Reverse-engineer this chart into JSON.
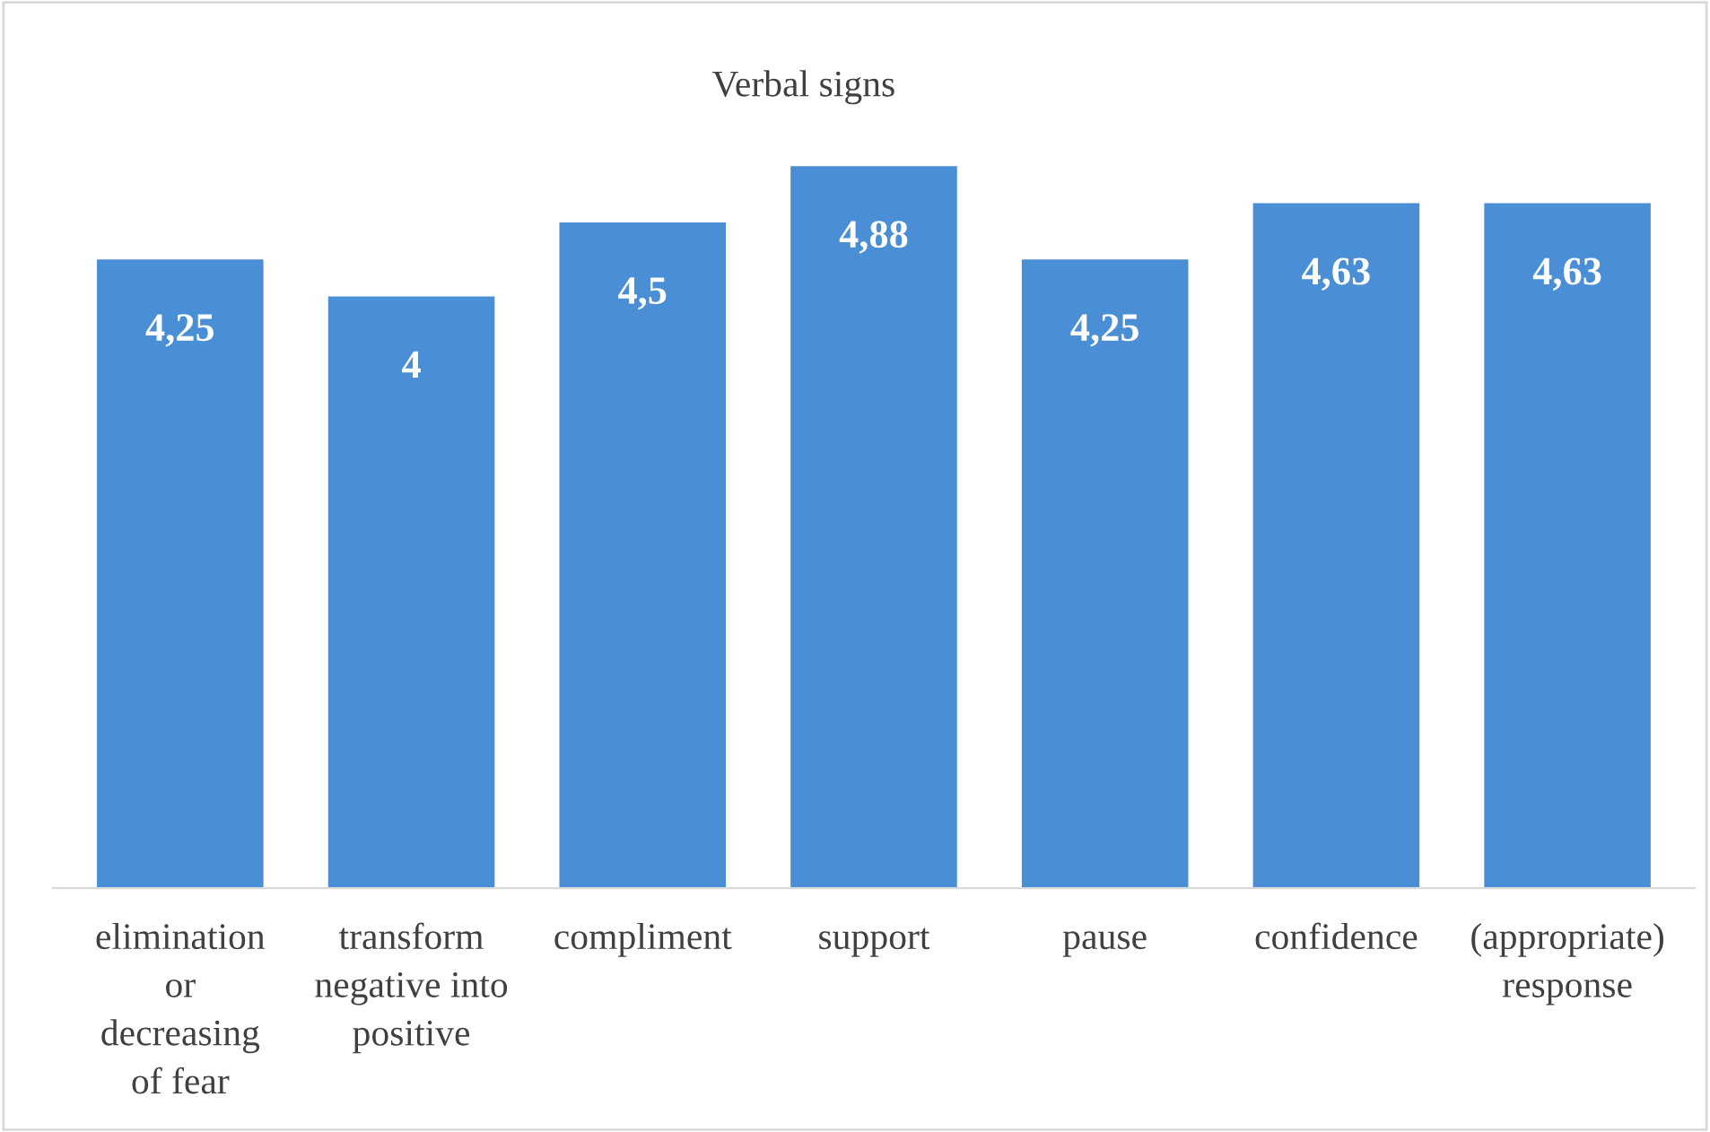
{
  "chart_data": {
    "type": "bar",
    "title": "Verbal signs",
    "categories": [
      "elimination\nor\ndecreasing\nof fear",
      "transform\nnegative into\npositive",
      "compliment",
      "support",
      "pause",
      "confidence",
      "(appropriate)\nresponse"
    ],
    "values": [
      4.25,
      4,
      4.5,
      4.88,
      4.25,
      4.63,
      4.63
    ],
    "value_labels": [
      "4,25",
      "4",
      "4,5",
      "4,88",
      "4,25",
      "4,63",
      "4,63"
    ],
    "color": "#4a8fd6",
    "grid": false,
    "legend": false
  }
}
